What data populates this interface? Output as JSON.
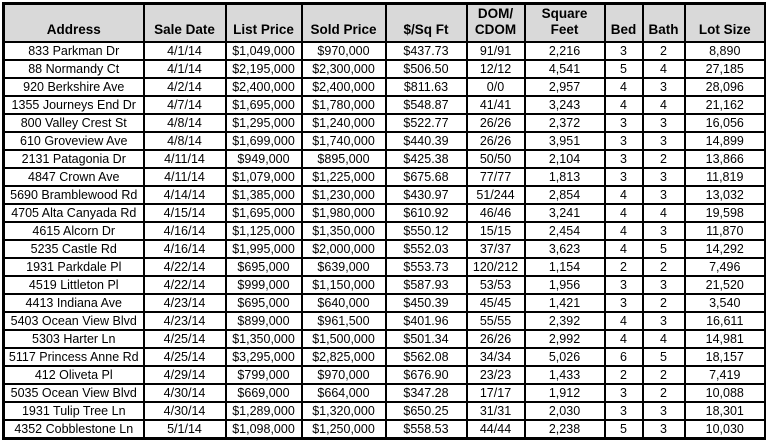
{
  "colors": {
    "header_bg": "#d9d9d9",
    "grid_border": "#000000",
    "row_bg": "#ffffff",
    "text": "#000000"
  },
  "chart_data": {
    "type": "table",
    "title": "",
    "columns": [
      {
        "key": "address",
        "label": "Address"
      },
      {
        "key": "sale-date",
        "label": "Sale Date"
      },
      {
        "key": "list-price",
        "label": "List Price"
      },
      {
        "key": "sold-price",
        "label": "Sold Price"
      },
      {
        "key": "price-per-sqft",
        "label": "$/Sq Ft"
      },
      {
        "key": "dom-cdom",
        "label": "DOM/\nCDOM"
      },
      {
        "key": "square-feet",
        "label": "Square\nFeet"
      },
      {
        "key": "bed",
        "label": "Bed"
      },
      {
        "key": "bath",
        "label": "Bath"
      },
      {
        "key": "lot-size",
        "label": "Lot Size"
      }
    ],
    "rows": [
      [
        "833 Parkman Dr",
        "4/1/14",
        "$1,049,000",
        "$970,000",
        "$437.73",
        "91/91",
        "2,216",
        "3",
        "2",
        "8,890"
      ],
      [
        "88 Normandy Ct",
        "4/1/14",
        "$2,195,000",
        "$2,300,000",
        "$506.50",
        "12/12",
        "4,541",
        "5",
        "4",
        "27,185"
      ],
      [
        "920 Berkshire Ave",
        "4/2/14",
        "$2,400,000",
        "$2,400,000",
        "$811.63",
        "0/0",
        "2,957",
        "4",
        "3",
        "28,096"
      ],
      [
        "1355 Journeys End Dr",
        "4/7/14",
        "$1,695,000",
        "$1,780,000",
        "$548.87",
        "41/41",
        "3,243",
        "4",
        "4",
        "21,162"
      ],
      [
        "800 Valley Crest St",
        "4/8/14",
        "$1,295,000",
        "$1,240,000",
        "$522.77",
        "26/26",
        "2,372",
        "3",
        "3",
        "16,056"
      ],
      [
        "610 Groveview Ave",
        "4/8/14",
        "$1,699,000",
        "$1,740,000",
        "$440.39",
        "26/26",
        "3,951",
        "3",
        "3",
        "14,899"
      ],
      [
        "2131 Patagonia Dr",
        "4/11/14",
        "$949,000",
        "$895,000",
        "$425.38",
        "50/50",
        "2,104",
        "3",
        "2",
        "13,866"
      ],
      [
        "4847 Crown Ave",
        "4/11/14",
        "$1,079,000",
        "$1,225,000",
        "$675.68",
        "77/77",
        "1,813",
        "3",
        "3",
        "11,819"
      ],
      [
        "5690 Bramblewood Rd",
        "4/14/14",
        "$1,385,000",
        "$1,230,000",
        "$430.97",
        "51/244",
        "2,854",
        "4",
        "3",
        "13,032"
      ],
      [
        "4705 Alta Canyada Rd",
        "4/15/14",
        "$1,695,000",
        "$1,980,000",
        "$610.92",
        "46/46",
        "3,241",
        "4",
        "4",
        "19,598"
      ],
      [
        "4615 Alcorn Dr",
        "4/16/14",
        "$1,125,000",
        "$1,350,000",
        "$550.12",
        "15/15",
        "2,454",
        "4",
        "3",
        "11,870"
      ],
      [
        "5235 Castle Rd",
        "4/16/14",
        "$1,995,000",
        "$2,000,000",
        "$552.03",
        "37/37",
        "3,623",
        "4",
        "5",
        "14,292"
      ],
      [
        "1931 Parkdale Pl",
        "4/22/14",
        "$695,000",
        "$639,000",
        "$553.73",
        "120/212",
        "1,154",
        "2",
        "2",
        "7,496"
      ],
      [
        "4519 Littleton Pl",
        "4/22/14",
        "$999,000",
        "$1,150,000",
        "$587.93",
        "53/53",
        "1,956",
        "3",
        "3",
        "21,520"
      ],
      [
        "4413 Indiana Ave",
        "4/23/14",
        "$695,000",
        "$640,000",
        "$450.39",
        "45/45",
        "1,421",
        "3",
        "2",
        "3,540"
      ],
      [
        "5403 Ocean View Blvd",
        "4/23/14",
        "$899,000",
        "$961,500",
        "$401.96",
        "55/55",
        "2,392",
        "4",
        "3",
        "16,611"
      ],
      [
        "5303 Harter Ln",
        "4/25/14",
        "$1,350,000",
        "$1,500,000",
        "$501.34",
        "26/26",
        "2,992",
        "4",
        "4",
        "14,981"
      ],
      [
        "5117 Princess Anne Rd",
        "4/25/14",
        "$3,295,000",
        "$2,825,000",
        "$562.08",
        "34/34",
        "5,026",
        "6",
        "5",
        "18,157"
      ],
      [
        "412 Oliveta Pl",
        "4/29/14",
        "$799,000",
        "$970,000",
        "$676.90",
        "23/23",
        "1,433",
        "2",
        "2",
        "7,419"
      ],
      [
        "5035 Ocean View Blvd",
        "4/30/14",
        "$669,000",
        "$664,000",
        "$347.28",
        "17/17",
        "1,912",
        "3",
        "2",
        "10,088"
      ],
      [
        "1931 Tulip Tree Ln",
        "4/30/14",
        "$1,289,000",
        "$1,320,000",
        "$650.25",
        "31/31",
        "2,030",
        "3",
        "3",
        "18,301"
      ],
      [
        "4352 Cobblestone Ln",
        "5/1/14",
        "$1,098,000",
        "$1,250,000",
        "$558.53",
        "44/44",
        "2,238",
        "5",
        "3",
        "10,030"
      ]
    ]
  }
}
